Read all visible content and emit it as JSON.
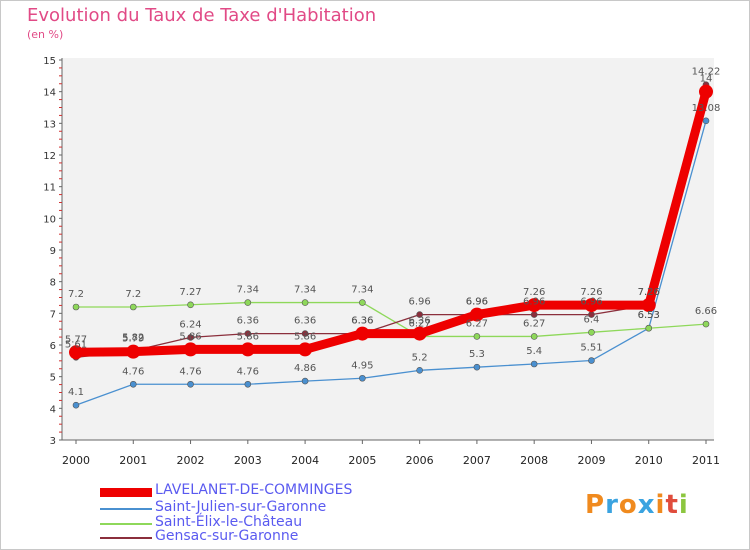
{
  "header": {
    "title": "Evolution du Taux de Taxe d'Habitation",
    "unit": "(en %)"
  },
  "logo": {
    "letters": [
      "P",
      "r",
      "o",
      "x",
      "i",
      "t",
      "i"
    ],
    "colors": [
      "#f08a1e",
      "#3aa3e0",
      "#f08a1e",
      "#3aa3e0",
      "#f08a1e",
      "#e04c3c",
      "#8cc63f"
    ]
  },
  "chart_data": {
    "type": "line",
    "title": "Evolution du Taux de Taxe d'Habitation",
    "ylabel": "(en %)",
    "xlabel": "",
    "x": [
      "2000",
      "2001",
      "2002",
      "2003",
      "2004",
      "2005",
      "2006",
      "2007",
      "2008",
      "2009",
      "2010",
      "2011"
    ],
    "ylim": [
      3,
      15
    ],
    "yticks": [
      "3",
      "4",
      "5",
      "6",
      "7",
      "8",
      "9",
      "10",
      "11",
      "12",
      "13",
      "14",
      "15"
    ],
    "grid": false,
    "legend_position": "bottom-left",
    "series": [
      {
        "name": "LAVELANET-DE-COMMINGES",
        "color": "#ee0000",
        "values": [
          5.77,
          5.79,
          5.86,
          5.86,
          5.86,
          6.36,
          6.36,
          6.96,
          7.26,
          7.26,
          7.26,
          14.0
        ],
        "labels": [
          "5.77",
          "5.79",
          "5.86",
          "5.86",
          "5.86",
          "6.36",
          "6.36",
          "6.96",
          "7.26",
          "7.26",
          "7.26",
          "14"
        ]
      },
      {
        "name": "Saint-Julien-sur-Garonne",
        "color": "#4a90d0",
        "values": [
          4.1,
          4.76,
          4.76,
          4.76,
          4.86,
          4.95,
          5.2,
          5.3,
          5.4,
          5.51,
          6.53,
          13.08
        ],
        "labels": [
          "4.1",
          "4.76",
          "4.76",
          "4.76",
          "4.86",
          "4.95",
          "5.2",
          "5.3",
          "5.4",
          "5.51",
          "6.53",
          "13.08"
        ]
      },
      {
        "name": "Saint-Élix-le-Château",
        "color": "#8ed85a",
        "values": [
          7.2,
          7.2,
          7.27,
          7.34,
          7.34,
          7.34,
          6.27,
          6.27,
          6.27,
          6.4,
          6.53,
          6.66
        ],
        "labels": [
          "7.2",
          "7.2",
          "7.27",
          "7.34",
          "7.34",
          "7.34",
          "6.27",
          "6.27",
          "6.27",
          "6.4",
          "6.53",
          "6.66"
        ]
      },
      {
        "name": "Gensac-sur-Garonne",
        "color": "#8b2f3c",
        "values": [
          5.61,
          5.82,
          6.24,
          6.36,
          6.36,
          6.36,
          6.96,
          6.96,
          6.96,
          6.96,
          7.26,
          14.22
        ],
        "labels": [
          "5.61",
          "5.82",
          "6.24",
          "6.36",
          "6.36",
          "6.36",
          "6.96",
          "6.96",
          "6.96",
          "6.96",
          "7.26",
          "14.22"
        ]
      }
    ]
  }
}
